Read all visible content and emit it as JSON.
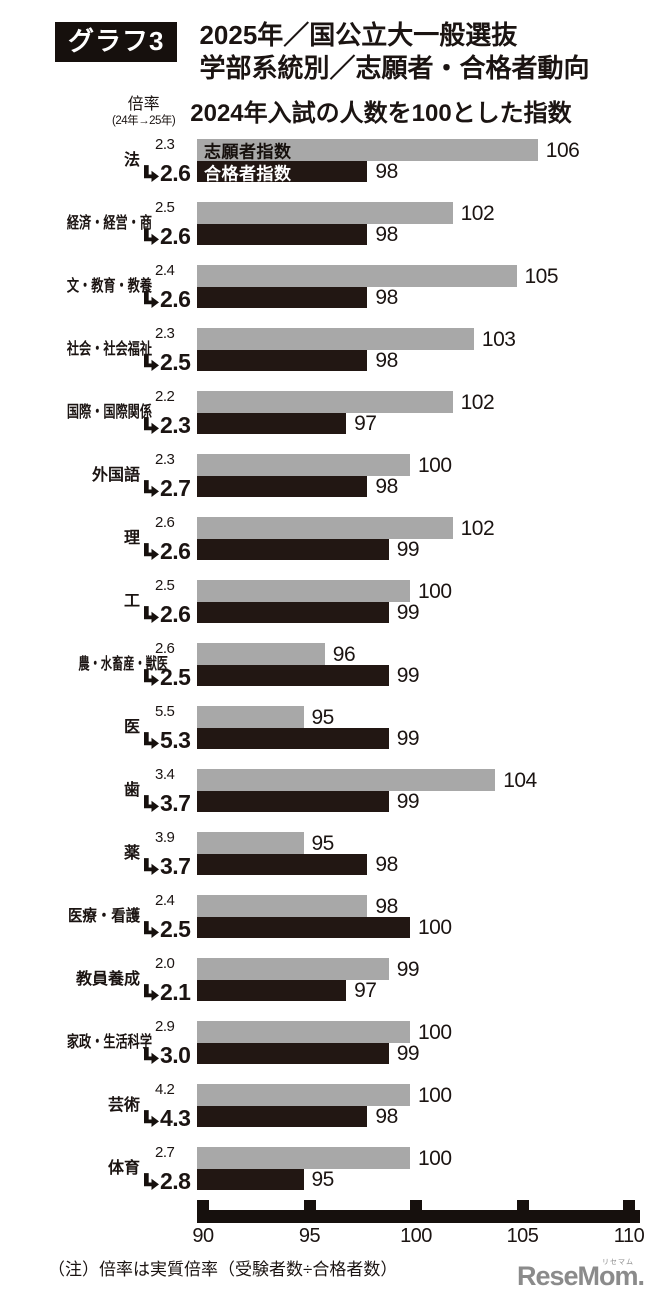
{
  "header": {
    "badge": "グラフ3",
    "title_line1": "2025年／国公立大一般選抜",
    "title_line2": "学部系統別／志願者・合格者動向",
    "ratio_label": "倍率",
    "ratio_sublabel": "(24年→25年)",
    "subtitle": "2024年入試の人数を100とした指数"
  },
  "legend": {
    "applicant": "志願者指数",
    "admitted": "合格者指数"
  },
  "colors": {
    "applicant_bar": "#a8a8a8",
    "admitted_bar": "#221713",
    "axis": "#16100d",
    "text": "#1b1412",
    "logo": "#8b8b8b"
  },
  "chart_data": {
    "type": "bar",
    "orientation": "horizontal",
    "title": "2025年／国公立大一般選抜 学部系統別／志願者・合格者動向",
    "subtitle": "2024年入試の人数を100とした指数",
    "baseline_note": "2024年=100",
    "series": [
      {
        "name": "志願者指数",
        "color": "#a8a8a8"
      },
      {
        "name": "合格者指数",
        "color": "#221713"
      }
    ],
    "categories": [
      "法",
      "経済・経営・商",
      "文・教育・教養",
      "社会・社会福祉",
      "国際・国際関係",
      "外国語",
      "理",
      "工",
      "農・水畜産・獣医",
      "医",
      "歯",
      "薬",
      "医療・看護",
      "教員養成",
      "家政・生活科学",
      "芸術",
      "体育"
    ],
    "rows": [
      {
        "label": "法",
        "ratio_2024": "2.3",
        "ratio_2025": "2.6",
        "applicant_index": 106,
        "admitted_index": 98
      },
      {
        "label": "経済・経営・商",
        "ratio_2024": "2.5",
        "ratio_2025": "2.6",
        "applicant_index": 102,
        "admitted_index": 98
      },
      {
        "label": "文・教育・教養",
        "ratio_2024": "2.4",
        "ratio_2025": "2.6",
        "applicant_index": 105,
        "admitted_index": 98
      },
      {
        "label": "社会・社会福祉",
        "ratio_2024": "2.3",
        "ratio_2025": "2.5",
        "applicant_index": 103,
        "admitted_index": 98
      },
      {
        "label": "国際・国際関係",
        "ratio_2024": "2.2",
        "ratio_2025": "2.3",
        "applicant_index": 102,
        "admitted_index": 97
      },
      {
        "label": "外国語",
        "ratio_2024": "2.3",
        "ratio_2025": "2.7",
        "applicant_index": 100,
        "admitted_index": 98
      },
      {
        "label": "理",
        "ratio_2024": "2.6",
        "ratio_2025": "2.6",
        "applicant_index": 102,
        "admitted_index": 99
      },
      {
        "label": "工",
        "ratio_2024": "2.5",
        "ratio_2025": "2.6",
        "applicant_index": 100,
        "admitted_index": 99
      },
      {
        "label": "農・水畜産・獣医",
        "ratio_2024": "2.6",
        "ratio_2025": "2.5",
        "applicant_index": 96,
        "admitted_index": 99
      },
      {
        "label": "医",
        "ratio_2024": "5.5",
        "ratio_2025": "5.3",
        "applicant_index": 95,
        "admitted_index": 99
      },
      {
        "label": "歯",
        "ratio_2024": "3.4",
        "ratio_2025": "3.7",
        "applicant_index": 104,
        "admitted_index": 99
      },
      {
        "label": "薬",
        "ratio_2024": "3.9",
        "ratio_2025": "3.7",
        "applicant_index": 95,
        "admitted_index": 98
      },
      {
        "label": "医療・看護",
        "ratio_2024": "2.4",
        "ratio_2025": "2.5",
        "applicant_index": 98,
        "admitted_index": 100
      },
      {
        "label": "教員養成",
        "ratio_2024": "2.0",
        "ratio_2025": "2.1",
        "applicant_index": 99,
        "admitted_index": 97
      },
      {
        "label": "家政・生活科学",
        "ratio_2024": "2.9",
        "ratio_2025": "3.0",
        "applicant_index": 100,
        "admitted_index": 99
      },
      {
        "label": "芸術",
        "ratio_2024": "4.2",
        "ratio_2025": "4.3",
        "applicant_index": 100,
        "admitted_index": 98
      },
      {
        "label": "体育",
        "ratio_2024": "2.7",
        "ratio_2025": "2.8",
        "applicant_index": 100,
        "admitted_index": 95
      }
    ],
    "axis": {
      "min": 90,
      "max": 110,
      "ticks": [
        90,
        95,
        100,
        105,
        110
      ]
    },
    "grid": false,
    "legend_position": "inside-first-bars"
  },
  "footnote": "（注）倍率は実質倍率（受験者数÷合格者数）",
  "logo": {
    "text": "ReseMom.",
    "ruby": "リセマム"
  }
}
